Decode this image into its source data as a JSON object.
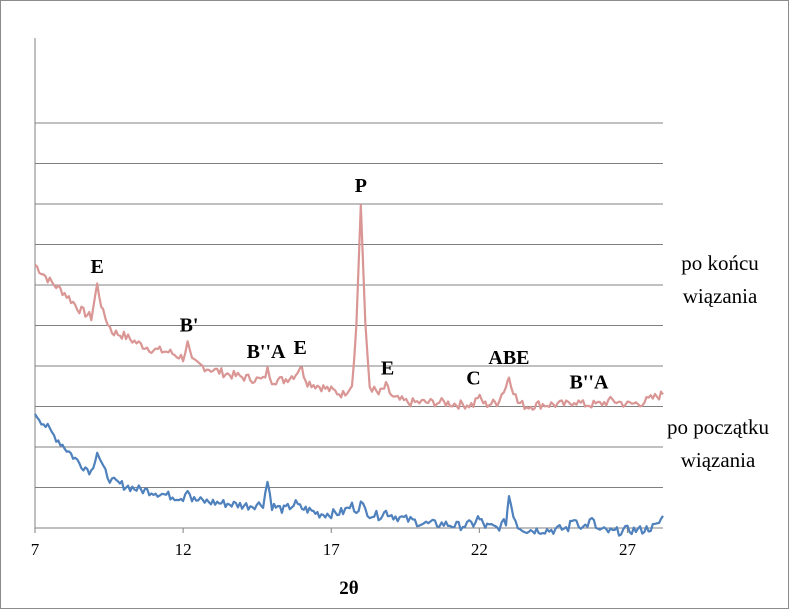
{
  "chart_data": {
    "type": "line",
    "xlabel": "2θ",
    "ylabel": "",
    "xlim": [
      7,
      28.2
    ],
    "ylim": [
      0,
      12
    ],
    "x_ticks": [
      7,
      12,
      17,
      22,
      27
    ],
    "grid": true,
    "series": [
      {
        "name": "po końcu wiązania",
        "color": "#d99694",
        "x": [
          7.0,
          7.5,
          8.0,
          8.5,
          8.9,
          9.1,
          9.3,
          9.6,
          10.0,
          10.5,
          11.0,
          11.5,
          12.0,
          12.15,
          12.3,
          12.8,
          13.5,
          14.2,
          14.7,
          14.85,
          15.0,
          15.4,
          15.8,
          15.95,
          16.2,
          16.6,
          17.0,
          17.4,
          17.7,
          17.85,
          18.0,
          18.15,
          18.3,
          18.6,
          18.85,
          19.1,
          19.6,
          20.2,
          20.8,
          21.3,
          21.8,
          21.95,
          22.2,
          22.6,
          22.9,
          23.0,
          23.15,
          23.3,
          23.6,
          24.0,
          24.5,
          25.0,
          25.2,
          25.5,
          26.0,
          26.5,
          27.0,
          27.5,
          28.0,
          28.2
        ],
        "y": [
          6.5,
          6.1,
          5.8,
          5.4,
          5.2,
          6.0,
          5.3,
          4.85,
          4.75,
          4.55,
          4.4,
          4.35,
          4.2,
          4.55,
          4.1,
          3.95,
          3.8,
          3.7,
          3.65,
          3.9,
          3.65,
          3.65,
          3.8,
          4.0,
          3.6,
          3.5,
          3.4,
          3.3,
          3.55,
          5.0,
          8.0,
          5.0,
          3.5,
          3.3,
          3.5,
          3.2,
          3.1,
          3.1,
          3.1,
          3.05,
          3.05,
          3.25,
          3.05,
          3.1,
          3.5,
          3.75,
          3.4,
          3.1,
          3.0,
          3.05,
          3.05,
          3.05,
          3.15,
          3.05,
          3.05,
          3.15,
          3.05,
          3.1,
          3.25,
          3.3
        ]
      },
      {
        "name": "po początku wiązania",
        "color": "#4f81bd",
        "x": [
          7.0,
          7.5,
          8.0,
          8.5,
          8.9,
          9.1,
          9.3,
          9.6,
          10.0,
          10.5,
          11.0,
          11.5,
          12.0,
          12.15,
          12.3,
          12.8,
          13.5,
          14.2,
          14.7,
          14.85,
          15.0,
          15.4,
          15.8,
          15.95,
          16.2,
          16.6,
          17.0,
          17.4,
          17.7,
          17.85,
          18.0,
          18.15,
          18.3,
          18.6,
          18.85,
          19.1,
          19.6,
          20.2,
          20.8,
          21.3,
          21.8,
          21.95,
          22.2,
          22.6,
          22.9,
          23.0,
          23.15,
          23.3,
          23.6,
          24.0,
          24.5,
          25.0,
          25.2,
          25.5,
          25.8,
          26.0,
          26.5,
          27.0,
          27.5,
          28.0,
          28.2
        ],
        "y": [
          2.85,
          2.4,
          2.0,
          1.6,
          1.4,
          1.9,
          1.45,
          1.15,
          1.05,
          0.95,
          0.9,
          0.8,
          0.75,
          1.0,
          0.7,
          0.65,
          0.6,
          0.55,
          0.6,
          1.15,
          0.55,
          0.45,
          0.6,
          0.5,
          0.45,
          0.35,
          0.35,
          0.4,
          0.55,
          0.45,
          0.6,
          0.45,
          0.35,
          0.3,
          0.4,
          0.3,
          0.2,
          0.1,
          0.1,
          0.05,
          0.1,
          0.25,
          0.05,
          0.0,
          0.15,
          0.8,
          0.35,
          0.05,
          -0.05,
          -0.05,
          -0.05,
          0.0,
          0.25,
          0.0,
          0.2,
          -0.05,
          -0.1,
          -0.05,
          -0.05,
          0.05,
          0.3
        ]
      }
    ],
    "annotations": [
      {
        "text": "E",
        "x": 9.1,
        "y": 6.0
      },
      {
        "text": "B'",
        "x": 12.2,
        "y": 4.55
      },
      {
        "text": "B''A",
        "x": 14.8,
        "y": 3.9
      },
      {
        "text": "E",
        "x": 15.95,
        "y": 4.0
      },
      {
        "text": "P",
        "x": 18.0,
        "y": 8.0
      },
      {
        "text": "E",
        "x": 18.9,
        "y": 3.5
      },
      {
        "text": "C",
        "x": 21.8,
        "y": 3.25
      },
      {
        "text": "ABE",
        "x": 23.0,
        "y": 3.75
      },
      {
        "text": "B''A",
        "x": 25.7,
        "y": 3.15
      }
    ],
    "series_labels": [
      {
        "line1": "po końcu",
        "line2": "wiązania"
      },
      {
        "line1": "po początku",
        "line2": "wiązania"
      }
    ]
  }
}
